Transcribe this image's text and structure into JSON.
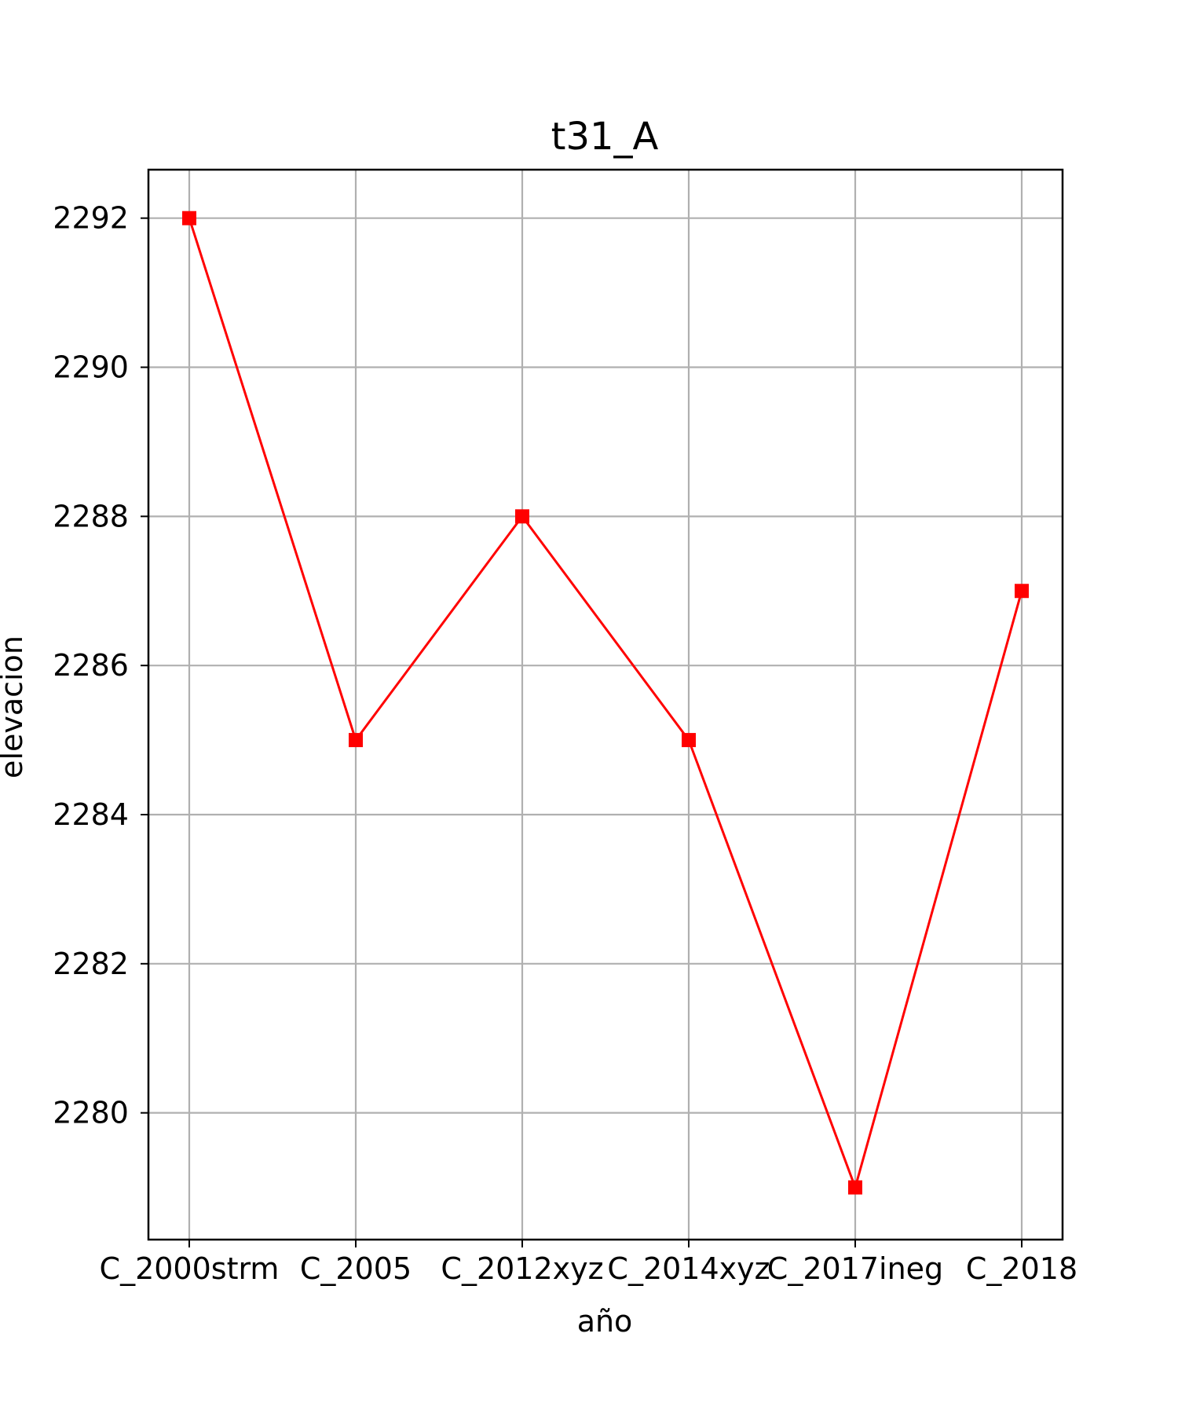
{
  "chart_data": {
    "type": "line",
    "title": "t31_A",
    "xlabel": "año",
    "ylabel": "elevacion",
    "categories": [
      "C_2000strm",
      "C_2005",
      "C_2012xyz",
      "C_2014xyz",
      "C_2017ineg",
      "C_2018"
    ],
    "series": [
      {
        "values": [
          2292,
          2285,
          2288,
          2285,
          2279,
          2287
        ]
      }
    ],
    "yticks": [
      2280,
      2282,
      2284,
      2286,
      2288,
      2290,
      2292
    ],
    "ylim": [
      2278.3,
      2292.65
    ],
    "grid": true,
    "line_color": "#ff0000",
    "grid_color": "#b0b0b0",
    "marker": "square"
  }
}
